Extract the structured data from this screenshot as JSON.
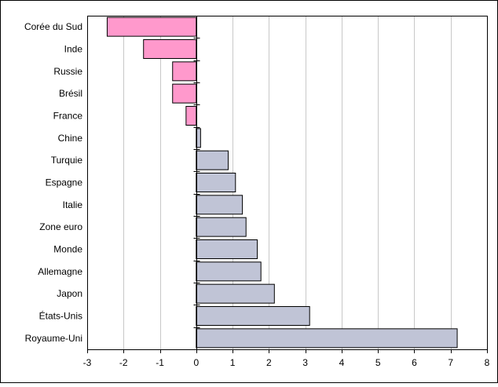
{
  "chart_data": {
    "type": "bar",
    "orientation": "horizontal",
    "title": "",
    "xlabel": "",
    "ylabel": "",
    "xlim": [
      -3,
      8
    ],
    "xticks": [
      -3,
      -2,
      -1,
      0,
      1,
      2,
      3,
      4,
      5,
      6,
      7,
      8
    ],
    "grid": "vertical",
    "legend": "none",
    "categories": [
      "Corée du Sud",
      "Inde",
      "Russie",
      "Brésil",
      "France",
      "Chine",
      "Turquie",
      "Espagne",
      "Italie",
      "Zone euro",
      "Monde",
      "Allemagne",
      "Japon",
      "États-Unis",
      "Royaume-Uni"
    ],
    "values": [
      -2.45,
      -1.45,
      -0.65,
      -0.65,
      -0.28,
      0.12,
      0.88,
      1.08,
      1.27,
      1.37,
      1.68,
      1.78,
      2.15,
      3.12,
      7.18
    ],
    "colors": {
      "negative": "#ff99cc",
      "positive": "#c0c4d6",
      "bar_stroke": "#000000",
      "grid": "#c8c8c8",
      "frame": "#000000"
    }
  }
}
